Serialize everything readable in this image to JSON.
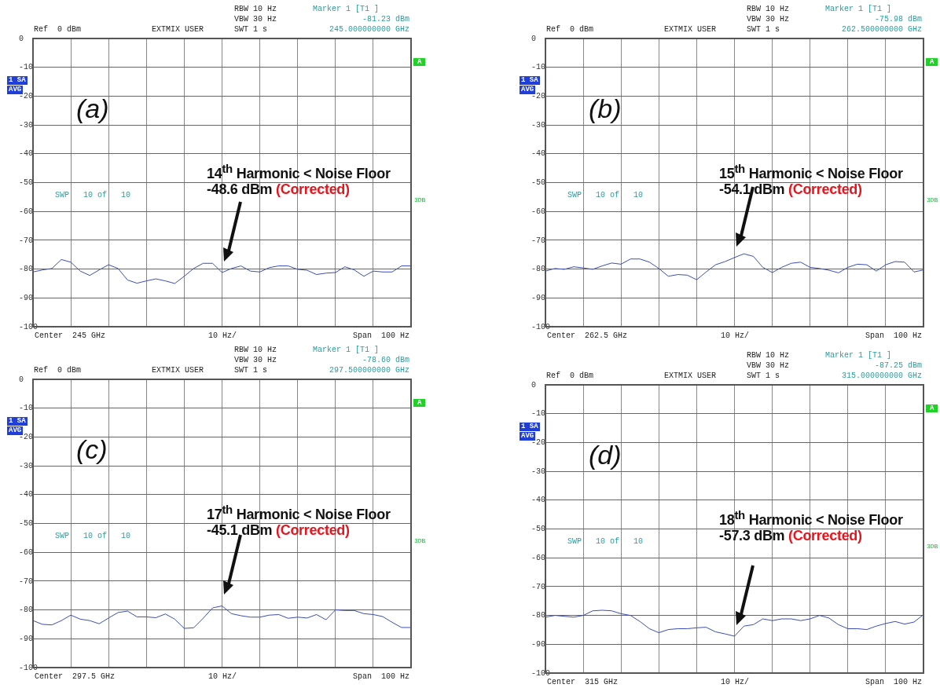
{
  "chart_data": [
    {
      "type": "line",
      "title": "(a)",
      "categories": [
        null,
        null,
        null,
        null,
        null,
        null,
        null,
        null,
        null,
        null,
        null,
        null,
        null,
        null,
        null,
        null,
        null,
        null,
        null,
        null,
        null,
        null,
        null,
        null,
        null,
        null,
        null,
        null,
        null,
        null,
        null,
        null,
        null,
        null,
        null,
        null,
        null,
        null,
        null,
        null,
        null
      ],
      "ylim": [
        -100,
        0
      ],
      "yticks": [
        0,
        -10,
        -20,
        -30,
        -40,
        -50,
        -60,
        -70,
        -80,
        -90,
        -100
      ],
      "tick_labels": "y",
      "grid": true,
      "marker": "none",
      "series": [
        {
          "color": "#3a4dbd",
          "values": [
            -81,
            -80.3,
            -79.8,
            -76.7,
            -77.6,
            -80.7,
            -82.2,
            -80.3,
            -78.5,
            -79.8,
            -83.8,
            -84.9,
            -84.1,
            -83.4,
            -84.1,
            -85,
            -82.5,
            -79.8,
            -78,
            -78,
            -81.2,
            -79.8,
            -78.9,
            -80.7,
            -81,
            -79.5,
            -78.9,
            -78.9,
            -80.1,
            -80.4,
            -81.9,
            -81.4,
            -81.2,
            -79.2,
            -80.3,
            -82.5,
            -80.7,
            -81,
            -81,
            -78.9,
            -78.9
          ]
        }
      ],
      "annotations": [
        "Ref  0 dBm",
        "EXTMIX USER",
        "RBW 10 Hz",
        "VBW 30 Hz",
        "SWT 1 s",
        "Marker 1 [T1 ]",
        "-81.23 dBm",
        "245.000000000 GHz",
        "1 SA",
        "AVG",
        "A",
        "3DB",
        "SWP   10 of   10",
        "Center  245 GHz",
        "10 Hz/",
        "Span  100 Hz",
        "14$^{th}$ Harmonic < Noise Floor",
        "-48.6 dBm",
        "(Corrected)"
      ]
    },
    {
      "type": "line",
      "title": "(b)",
      "categories": [
        null,
        null,
        null,
        null,
        null,
        null,
        null,
        null,
        null,
        null,
        null,
        null,
        null,
        null,
        null,
        null,
        null,
        null,
        null,
        null,
        null,
        null,
        null,
        null,
        null,
        null,
        null,
        null,
        null,
        null,
        null,
        null,
        null,
        null,
        null,
        null,
        null,
        null,
        null,
        null,
        null
      ],
      "ylim": [
        -100,
        0
      ],
      "yticks": [
        0,
        -10,
        -20,
        -30,
        -40,
        -50,
        -60,
        -70,
        -80,
        -90,
        -100
      ],
      "tick_labels": "y",
      "grid": true,
      "marker": "none",
      "series": [
        {
          "color": "#3a4dbd",
          "values": [
            -80.7,
            -79.8,
            -80.1,
            -79.2,
            -79.6,
            -80.1,
            -78.9,
            -77.9,
            -78.3,
            -76.5,
            -76.5,
            -77.6,
            -79.8,
            -82.5,
            -81.9,
            -82.1,
            -83.7,
            -81,
            -78.5,
            -77.4,
            -76,
            -74.7,
            -75.6,
            -79.4,
            -81.2,
            -79.4,
            -78,
            -77.6,
            -79.4,
            -79.8,
            -80.4,
            -81.3,
            -79.4,
            -78.3,
            -78.5,
            -80.7,
            -78.5,
            -77.4,
            -77.6,
            -81,
            -80.3
          ]
        }
      ],
      "annotations": [
        "Ref  0 dBm",
        "EXTMIX USER",
        "RBW 10 Hz",
        "VBW 30 Hz",
        "SWT 1 s",
        "Marker 1 [T1 ]",
        "-75.98 dBm",
        "262.500000000 GHz",
        "1 SA",
        "AVG",
        "A",
        "3DB",
        "SWP   10 of   10",
        "Center  262.5 GHz",
        "10 Hz/",
        "Span  100 Hz",
        "15$^{th}$ Harmonic < Noise Floor",
        "-54.1 dBm",
        "(Corrected)"
      ]
    },
    {
      "type": "line",
      "title": "(c)",
      "categories": [
        null,
        null,
        null,
        null,
        null,
        null,
        null,
        null,
        null,
        null,
        null,
        null,
        null,
        null,
        null,
        null,
        null,
        null,
        null,
        null,
        null,
        null,
        null,
        null,
        null,
        null,
        null,
        null,
        null,
        null,
        null,
        null,
        null,
        null,
        null,
        null,
        null,
        null,
        null,
        null,
        null
      ],
      "ylim": [
        -100,
        0
      ],
      "yticks": [
        0,
        -10,
        -20,
        -30,
        -40,
        -50,
        -60,
        -70,
        -80,
        -90,
        -100
      ],
      "tick_labels": "y",
      "grid": true,
      "marker": "none",
      "series": [
        {
          "color": "#3a4dbd",
          "values": [
            -83.7,
            -85,
            -85.2,
            -83.7,
            -81.8,
            -83.2,
            -83.7,
            -84.8,
            -82.8,
            -80.9,
            -80.4,
            -82.4,
            -82.4,
            -82.7,
            -81.4,
            -83.2,
            -86.4,
            -86.2,
            -82.9,
            -79.3,
            -78.6,
            -81.3,
            -82,
            -82.5,
            -82.5,
            -81.8,
            -81.6,
            -82.9,
            -82.5,
            -82.8,
            -81.6,
            -83.4,
            -80,
            -80.2,
            -80.2,
            -81.3,
            -81.6,
            -82.3,
            -84.3,
            -86.1,
            -86.1
          ]
        }
      ],
      "annotations": [
        "Ref  0 dBm",
        "EXTMIX USER",
        "RBW 10 Hz",
        "VBW 30 Hz",
        "SWT 1 s",
        "Marker 1 [T1 ]",
        "-78.60 dBm",
        "297.500000000 GHz",
        "1 SA",
        "AVG",
        "A",
        "3DB",
        "SWP   10 of   10",
        "Center  297.5 GHz",
        "10 Hz/",
        "Span  100 Hz",
        "17$^{th}$ Harmonic < Noise Floor",
        "-45.1 dBm",
        "(Corrected)"
      ]
    },
    {
      "type": "line",
      "title": "(d)",
      "categories": [
        null,
        null,
        null,
        null,
        null,
        null,
        null,
        null,
        null,
        null,
        null,
        null,
        null,
        null,
        null,
        null,
        null,
        null,
        null,
        null,
        null,
        null,
        null,
        null,
        null,
        null,
        null,
        null,
        null,
        null,
        null,
        null,
        null,
        null,
        null,
        null,
        null,
        null,
        null,
        null,
        null
      ],
      "ylim": [
        -100,
        0
      ],
      "yticks": [
        0,
        -10,
        -20,
        -30,
        -40,
        -50,
        -60,
        -70,
        -80,
        -90,
        -100
      ],
      "tick_labels": "y",
      "grid": true,
      "marker": "none",
      "series": [
        {
          "color": "#3a4dbd",
          "values": [
            -80.6,
            -80,
            -80.3,
            -80.6,
            -80,
            -78.4,
            -78.2,
            -78.4,
            -79.4,
            -80,
            -82.1,
            -84.6,
            -86,
            -84.9,
            -84.6,
            -84.6,
            -84.3,
            -84.1,
            -85.7,
            -86.4,
            -87.2,
            -83.7,
            -83.2,
            -81.2,
            -81.8,
            -81.2,
            -81.2,
            -81.8,
            -81.2,
            -80,
            -80.9,
            -83.2,
            -84.6,
            -84.6,
            -84.9,
            -83.7,
            -82.8,
            -82.1,
            -83,
            -82.3,
            -79.7
          ]
        }
      ],
      "annotations": [
        "Ref  0 dBm",
        "EXTMIX USER",
        "RBW 10 Hz",
        "VBW 30 Hz",
        "SWT 1 s",
        "Marker 1 [T1 ]",
        "-87.25 dBm",
        "315.000000000 GHz",
        "1 SA",
        "AVG",
        "A",
        "3DB",
        "SWP   10 of   10",
        "Center  315 GHz",
        "10 Hz/",
        "Span  100 Hz",
        "18$^{th}$ Harmonic < Noise Floor",
        "-57.3 dBm",
        "(Corrected)"
      ]
    }
  ]
}
